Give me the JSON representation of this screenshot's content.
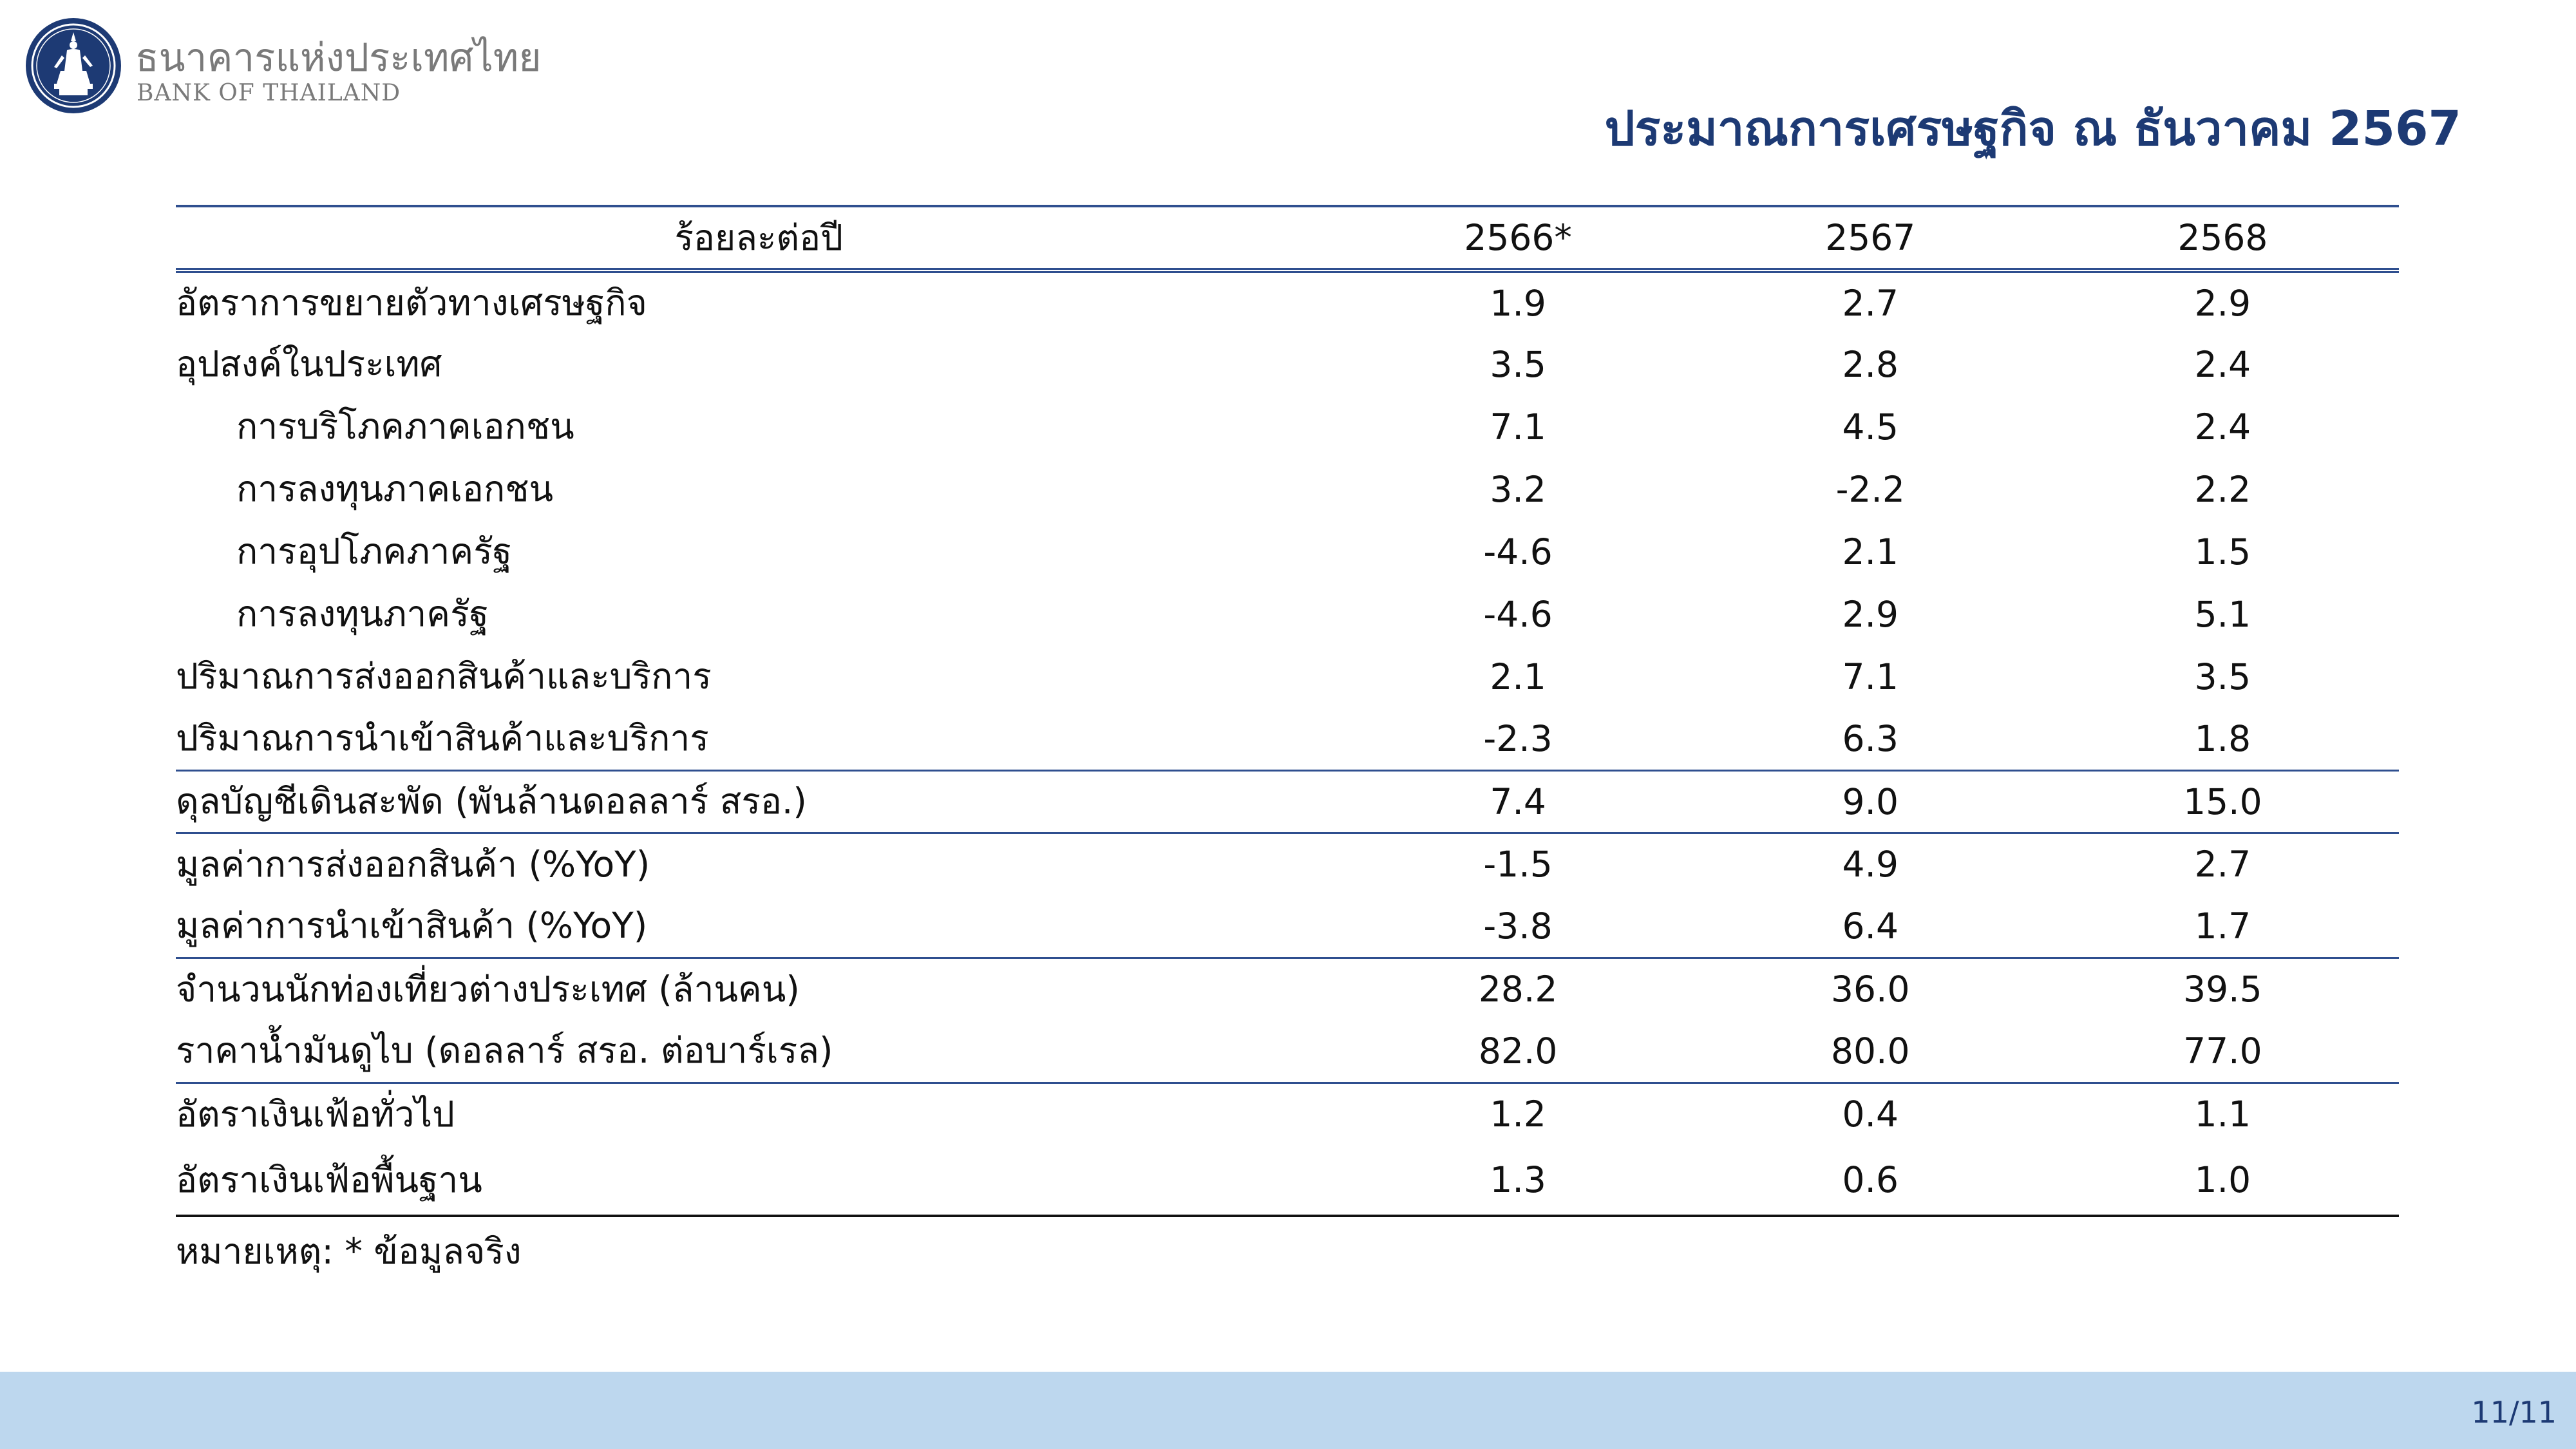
{
  "brand": {
    "name_th": "ธนาคารแห่งประเทศไทย",
    "name_en": "BANK OF THAILAND",
    "seal_color": "#1d3a74"
  },
  "title": "ประมาณการเศรษฐกิจ ณ ธันวาคม 2567",
  "table": {
    "header": [
      "ร้อยละต่อปี",
      "2566*",
      "2567",
      "2568"
    ],
    "rows": [
      {
        "label": "อัตราการขยายตัวทางเศรษฐกิจ",
        "values": [
          "1.9",
          "2.7",
          "2.9"
        ]
      },
      {
        "label": "อุปสงค์ในประเทศ",
        "values": [
          "3.5",
          "2.8",
          "2.4"
        ]
      },
      {
        "label": "การบริโภคภาคเอกชน",
        "values": [
          "7.1",
          "4.5",
          "2.4"
        ]
      },
      {
        "label": "การลงทุนภาคเอกชน",
        "values": [
          "3.2",
          "-2.2",
          "2.2"
        ]
      },
      {
        "label": "การอุปโภคภาครัฐ",
        "values": [
          "-4.6",
          "2.1",
          "1.5"
        ]
      },
      {
        "label": "การลงทุนภาครัฐ",
        "values": [
          "-4.6",
          "2.9",
          "5.1"
        ]
      },
      {
        "label": "ปริมาณการส่งออกสินค้าและบริการ",
        "values": [
          "2.1",
          "7.1",
          "3.5"
        ]
      },
      {
        "label": "ปริมาณการนำเข้าสินค้าและบริการ",
        "values": [
          "-2.3",
          "6.3",
          "1.8"
        ]
      },
      {
        "label": "ดุลบัญชีเดินสะพัด (พันล้านดอลลาร์ สรอ.)",
        "values": [
          "7.4",
          "9.0",
          "15.0"
        ]
      },
      {
        "label": "มูลค่าการส่งออกสินค้า (%YoY)",
        "values": [
          "-1.5",
          "4.9",
          "2.7"
        ]
      },
      {
        "label": "มูลค่าการนำเข้าสินค้า (%YoY)",
        "values": [
          "-3.8",
          "6.4",
          "1.7"
        ]
      },
      {
        "label": "จำนวนนักท่องเที่ยวต่างประเทศ (ล้านคน)",
        "values": [
          "28.2",
          "36.0",
          "39.5"
        ]
      },
      {
        "label": "ราคาน้ำมันดูไบ (ดอลลาร์ สรอ. ต่อบาร์เรล)",
        "values": [
          "82.0",
          "80.0",
          "77.0"
        ]
      },
      {
        "label": "อัตราเงินเฟ้อทั่วไป",
        "values": [
          "1.2",
          "0.4",
          "1.1"
        ]
      },
      {
        "label": "อัตราเงินเฟ้อพื้นฐาน",
        "values": [
          "1.3",
          "0.6",
          "1.0"
        ]
      }
    ]
  },
  "footnote": "หมายเหตุ: * ข้อมูลจริง",
  "page_number": "11/11",
  "colors": {
    "title": "#1d3a74",
    "rule": "#2f4f8f",
    "footer_band": "#bdd7ee"
  }
}
